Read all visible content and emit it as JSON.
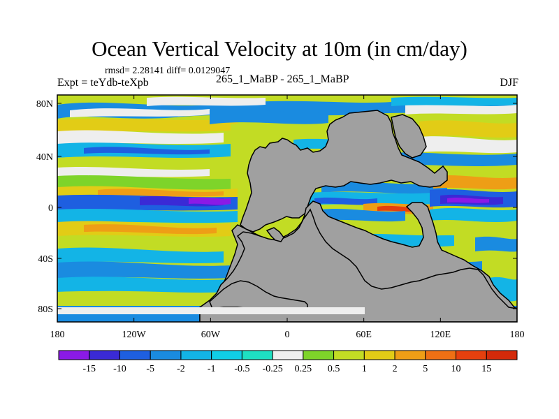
{
  "title": "Ocean Vertical Velocity at 10m (in cm/day)",
  "stats_line": "rmsd= 2.28141 diff= 0.0129047",
  "experiment_label": "Expt = teYdb-teXpb",
  "center_label": "265_1_MaBP - 265_1_MaBP",
  "season_label": "DJF",
  "chart_data": {
    "type": "heatmap",
    "title": "Ocean Vertical Velocity at 10m (in cm/day)",
    "x_ticks": [
      "180",
      "120W",
      "60W",
      "0",
      "60E",
      "120E",
      "180"
    ],
    "y_ticks": [
      "80N",
      "40N",
      "0",
      "40S",
      "80S"
    ],
    "xlim": [
      -180,
      180
    ],
    "ylim": [
      -90,
      90
    ],
    "legend_position": "bottom",
    "colorbar_labels": [
      "-15",
      "-10",
      "-5",
      "-2",
      "-1",
      "-0.5",
      "-0.25",
      "0.25",
      "0.5",
      "1",
      "2",
      "5",
      "10",
      "15"
    ],
    "colorbar_colors": [
      "#8a1ae6",
      "#3a2ad6",
      "#1e5fe0",
      "#1a8be0",
      "#13b4e6",
      "#10cde6",
      "#1ee0c2",
      "#eeeeee",
      "#7ed42a",
      "#c2dc24",
      "#e2cc16",
      "#ee9e16",
      "#ee7014",
      "#e6400e",
      "#d42a0a"
    ],
    "land_color": "#a0a0a0"
  }
}
